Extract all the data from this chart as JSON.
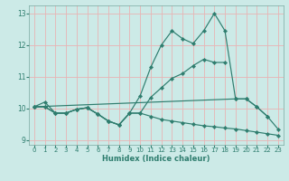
{
  "title": "",
  "xlabel": "Humidex (Indice chaleur)",
  "ylabel": "",
  "background_color": "#cceae7",
  "grid_color": "#e8b4b4",
  "line_color": "#2e7d6e",
  "xlim": [
    -0.5,
    23.5
  ],
  "ylim": [
    8.85,
    13.25
  ],
  "xticks": [
    0,
    1,
    2,
    3,
    4,
    5,
    6,
    7,
    8,
    9,
    10,
    11,
    12,
    13,
    14,
    15,
    16,
    17,
    18,
    19,
    20,
    21,
    22,
    23
  ],
  "yticks": [
    9,
    10,
    11,
    12,
    13
  ],
  "series": [
    {
      "x": [
        0,
        1,
        2,
        3,
        4,
        5,
        6,
        7,
        8,
        9,
        10,
        11,
        12,
        13,
        14,
        15,
        16,
        17,
        18,
        19,
        20,
        21,
        22
      ],
      "y": [
        10.05,
        10.2,
        9.85,
        9.85,
        9.97,
        10.02,
        9.82,
        9.6,
        9.48,
        9.85,
        10.4,
        11.3,
        12.0,
        12.45,
        12.2,
        12.05,
        12.45,
        13.0,
        12.45,
        10.3,
        10.3,
        10.05,
        9.75
      ]
    },
    {
      "x": [
        0,
        1,
        2,
        3,
        4,
        5,
        6,
        7,
        8,
        9,
        10,
        11,
        12,
        13,
        14,
        15,
        16,
        17,
        18
      ],
      "y": [
        10.05,
        10.05,
        9.85,
        9.85,
        9.97,
        10.02,
        9.82,
        9.6,
        9.48,
        9.85,
        9.85,
        10.35,
        10.65,
        10.95,
        11.1,
        11.35,
        11.55,
        11.45,
        11.45
      ]
    },
    {
      "x": [
        0,
        1,
        2,
        3,
        4,
        5,
        6,
        7,
        8,
        9,
        10,
        11,
        12,
        13,
        14,
        15,
        16,
        17,
        18,
        19,
        20,
        21,
        22,
        23
      ],
      "y": [
        10.05,
        10.05,
        9.85,
        9.85,
        9.97,
        10.02,
        9.82,
        9.6,
        9.48,
        9.85,
        9.85,
        9.75,
        9.65,
        9.6,
        9.55,
        9.5,
        9.45,
        9.42,
        9.38,
        9.35,
        9.3,
        9.25,
        9.2,
        9.15
      ]
    },
    {
      "x": [
        0,
        19,
        20,
        21,
        22,
        23
      ],
      "y": [
        10.05,
        10.3,
        10.3,
        10.05,
        9.75,
        9.35
      ]
    }
  ]
}
